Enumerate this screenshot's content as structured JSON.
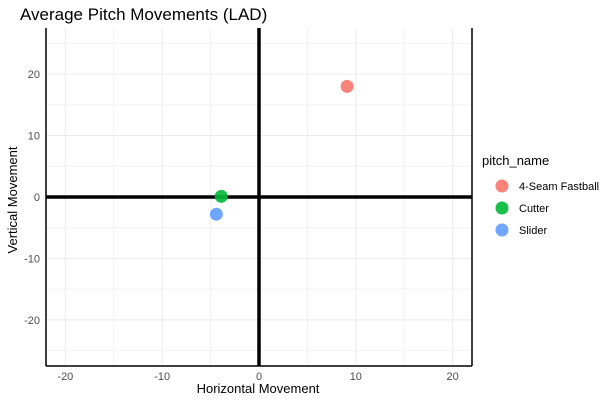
{
  "chart_data": {
    "type": "scatter",
    "title": "Average Pitch Movements (LAD)",
    "xlabel": "Horizontal Movement",
    "ylabel": "Vertical Movement",
    "xlim": [
      -22,
      22
    ],
    "ylim": [
      -27.5,
      27.5
    ],
    "x_ticks": [
      -20,
      -10,
      0,
      10,
      20
    ],
    "y_ticks": [
      -20,
      -10,
      0,
      10,
      20
    ],
    "x_tick_labels": [
      "-20",
      "-10",
      "0",
      "10",
      "20"
    ],
    "y_tick_labels": [
      "-20",
      "-10",
      "0",
      "10",
      "20"
    ],
    "grid": true,
    "reference_lines": {
      "x": 0,
      "y": 0
    },
    "legend": {
      "title": "pitch_name",
      "position": "right"
    },
    "series": [
      {
        "name": "4-Seam Fastball",
        "color": "#F8766D",
        "x": 9.1,
        "y": 18.0
      },
      {
        "name": "Cutter",
        "color": "#00BA38",
        "x": -3.9,
        "y": 0.1
      },
      {
        "name": "Slider",
        "color": "#619CFF",
        "x": -4.4,
        "y": -2.8
      }
    ]
  }
}
